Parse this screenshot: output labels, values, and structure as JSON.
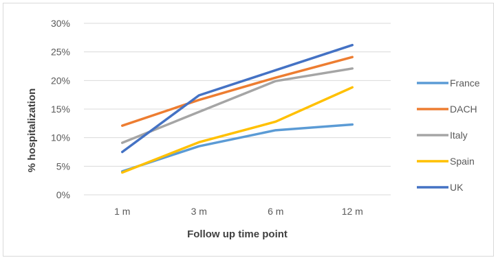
{
  "chart_data": {
    "type": "line",
    "xlabel": "Follow up time point",
    "ylabel": "% hospitalization",
    "categories": [
      "1 m",
      "3 m",
      "6 m",
      "12 m"
    ],
    "ylim": [
      0,
      30
    ],
    "yticks": [
      0,
      5,
      10,
      15,
      20,
      25,
      30
    ],
    "ytick_labels": [
      "0%",
      "5%",
      "10%",
      "15%",
      "20%",
      "25%",
      "30%"
    ],
    "grid": true,
    "legend_position": "right",
    "series": [
      {
        "name": "France",
        "color": "#5b9bd5",
        "values": [
          4.1,
          8.5,
          11.3,
          12.3
        ]
      },
      {
        "name": "DACH",
        "color": "#ed7d31",
        "values": [
          12.1,
          16.6,
          20.5,
          24.1
        ]
      },
      {
        "name": "Italy",
        "color": "#a5a5a5",
        "values": [
          9.1,
          14.5,
          19.9,
          22.1
        ]
      },
      {
        "name": "Spain",
        "color": "#ffc000",
        "values": [
          3.9,
          9.2,
          12.8,
          18.8
        ]
      },
      {
        "name": "UK",
        "color": "#4472c4",
        "values": [
          7.5,
          17.4,
          21.8,
          26.2
        ]
      }
    ]
  }
}
